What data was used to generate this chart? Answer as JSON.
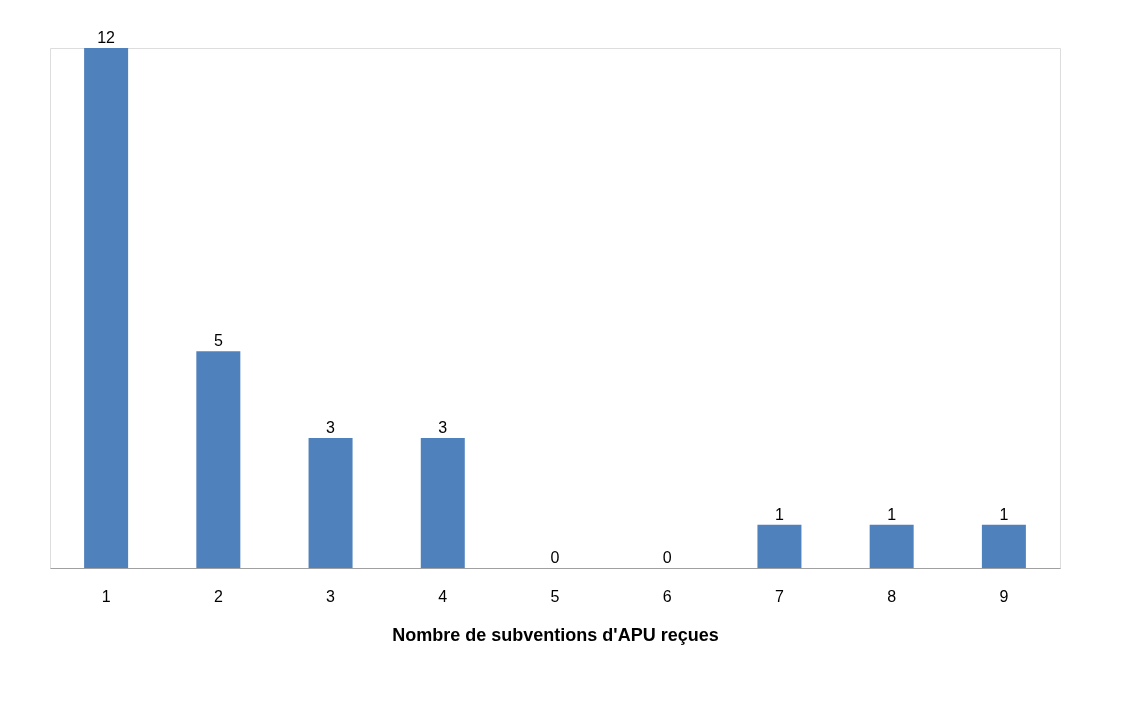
{
  "chart_data": {
    "type": "bar",
    "xlabel": "Nombre de subventions d'APU reçues",
    "categories": [
      "1",
      "2",
      "3",
      "4",
      "5",
      "6",
      "7",
      "8",
      "9"
    ],
    "values": [
      12,
      5,
      3,
      3,
      0,
      0,
      1,
      1,
      1
    ],
    "color": "#4f81bd",
    "data_labels": true,
    "grid": false
  }
}
